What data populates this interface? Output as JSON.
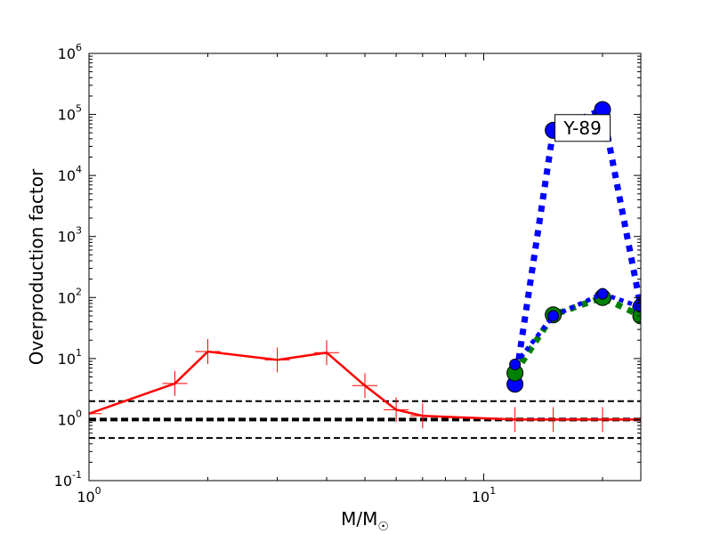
{
  "chart_data": {
    "type": "line",
    "xlabel": "M/M",
    "xlabel_subscript": "☉",
    "ylabel": "Overproduction factor",
    "xscale": "log",
    "yscale": "log",
    "xlim": [
      1,
      25
    ],
    "ylim": [
      0.1,
      1000000
    ],
    "x_ticks": [
      {
        "value": 1,
        "base": "10",
        "exp": "0"
      },
      {
        "value": 10,
        "base": "10",
        "exp": "1"
      }
    ],
    "y_ticks": [
      {
        "value": 0.1,
        "base": "10",
        "exp": "-1"
      },
      {
        "value": 1,
        "base": "10",
        "exp": "0"
      },
      {
        "value": 10,
        "base": "10",
        "exp": "1"
      },
      {
        "value": 100,
        "base": "10",
        "exp": "2"
      },
      {
        "value": 1000,
        "base": "10",
        "exp": "3"
      },
      {
        "value": 10000,
        "base": "10",
        "exp": "4"
      },
      {
        "value": 100000,
        "base": "10",
        "exp": "5"
      },
      {
        "value": 1000000,
        "base": "10",
        "exp": "6"
      }
    ],
    "annotation": {
      "text": "Y-89",
      "x": 17.8,
      "y": 60000
    },
    "series": [
      {
        "style": "red-solid-plus",
        "color": "#ff0000",
        "x": [
          1,
          1.65,
          2,
          3,
          4,
          5,
          6,
          7,
          12,
          15,
          20,
          25
        ],
        "y": [
          1.25,
          3.9,
          13,
          9.5,
          12.5,
          3.6,
          1.45,
          1.15,
          1.0,
          1.0,
          1.0,
          1.0
        ]
      },
      {
        "style": "blue-dotted-circle",
        "color": "#0000ff",
        "x": [
          12,
          15,
          20,
          25
        ],
        "y": [
          3.8,
          55000,
          120000,
          70
        ]
      },
      {
        "style": "green-dotted-circle",
        "color": "#008000",
        "x": [
          12,
          15,
          20,
          25
        ],
        "y": [
          5.8,
          52,
          100,
          50
        ]
      },
      {
        "style": "blue-dotted-circle-small",
        "color": "#0000ff",
        "x": [
          12,
          15,
          20,
          25
        ],
        "y": [
          8,
          50,
          115,
          70
        ]
      }
    ],
    "reference_lines": [
      {
        "y": 2,
        "style": "dashed"
      },
      {
        "y": 1,
        "style": "dashed-bold"
      },
      {
        "y": 0.5,
        "style": "dashed"
      }
    ]
  }
}
